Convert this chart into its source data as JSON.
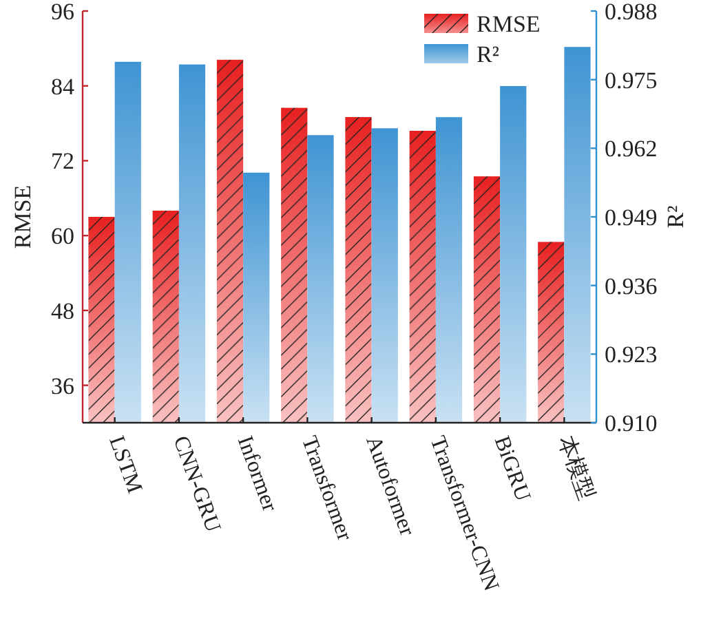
{
  "chart_data": {
    "type": "bar",
    "categories": [
      "LSTM",
      "CNN-GRU",
      "Informer",
      "Transformer",
      "Autoformer",
      "Transformer-CNN",
      "BiGRU",
      "本模型"
    ],
    "ylabel": "RMSE",
    "y2label": "R²",
    "legend": "top right",
    "ylim": [
      30,
      96
    ],
    "yticks": [
      36,
      48,
      60,
      72,
      84,
      96
    ],
    "y2lim": [
      0.91,
      0.988
    ],
    "y2ticks": [
      {
        "value": 0.91,
        "label": "0.910"
      },
      0.923,
      0.936,
      0.949,
      0.962,
      0.975,
      0.988
    ],
    "series": [
      {
        "name": "RMSE",
        "color": "#e82020",
        "values": [
          63,
          64,
          88.2,
          80.5,
          79,
          76.8,
          69.5,
          59
        ]
      },
      {
        "name": "R²",
        "color": "#3f94d3",
        "axis": "y2",
        "values": [
          0.9784,
          0.9779,
          0.9574,
          0.9645,
          0.9658,
          0.9679,
          0.9738,
          0.9812
        ]
      }
    ]
  }
}
